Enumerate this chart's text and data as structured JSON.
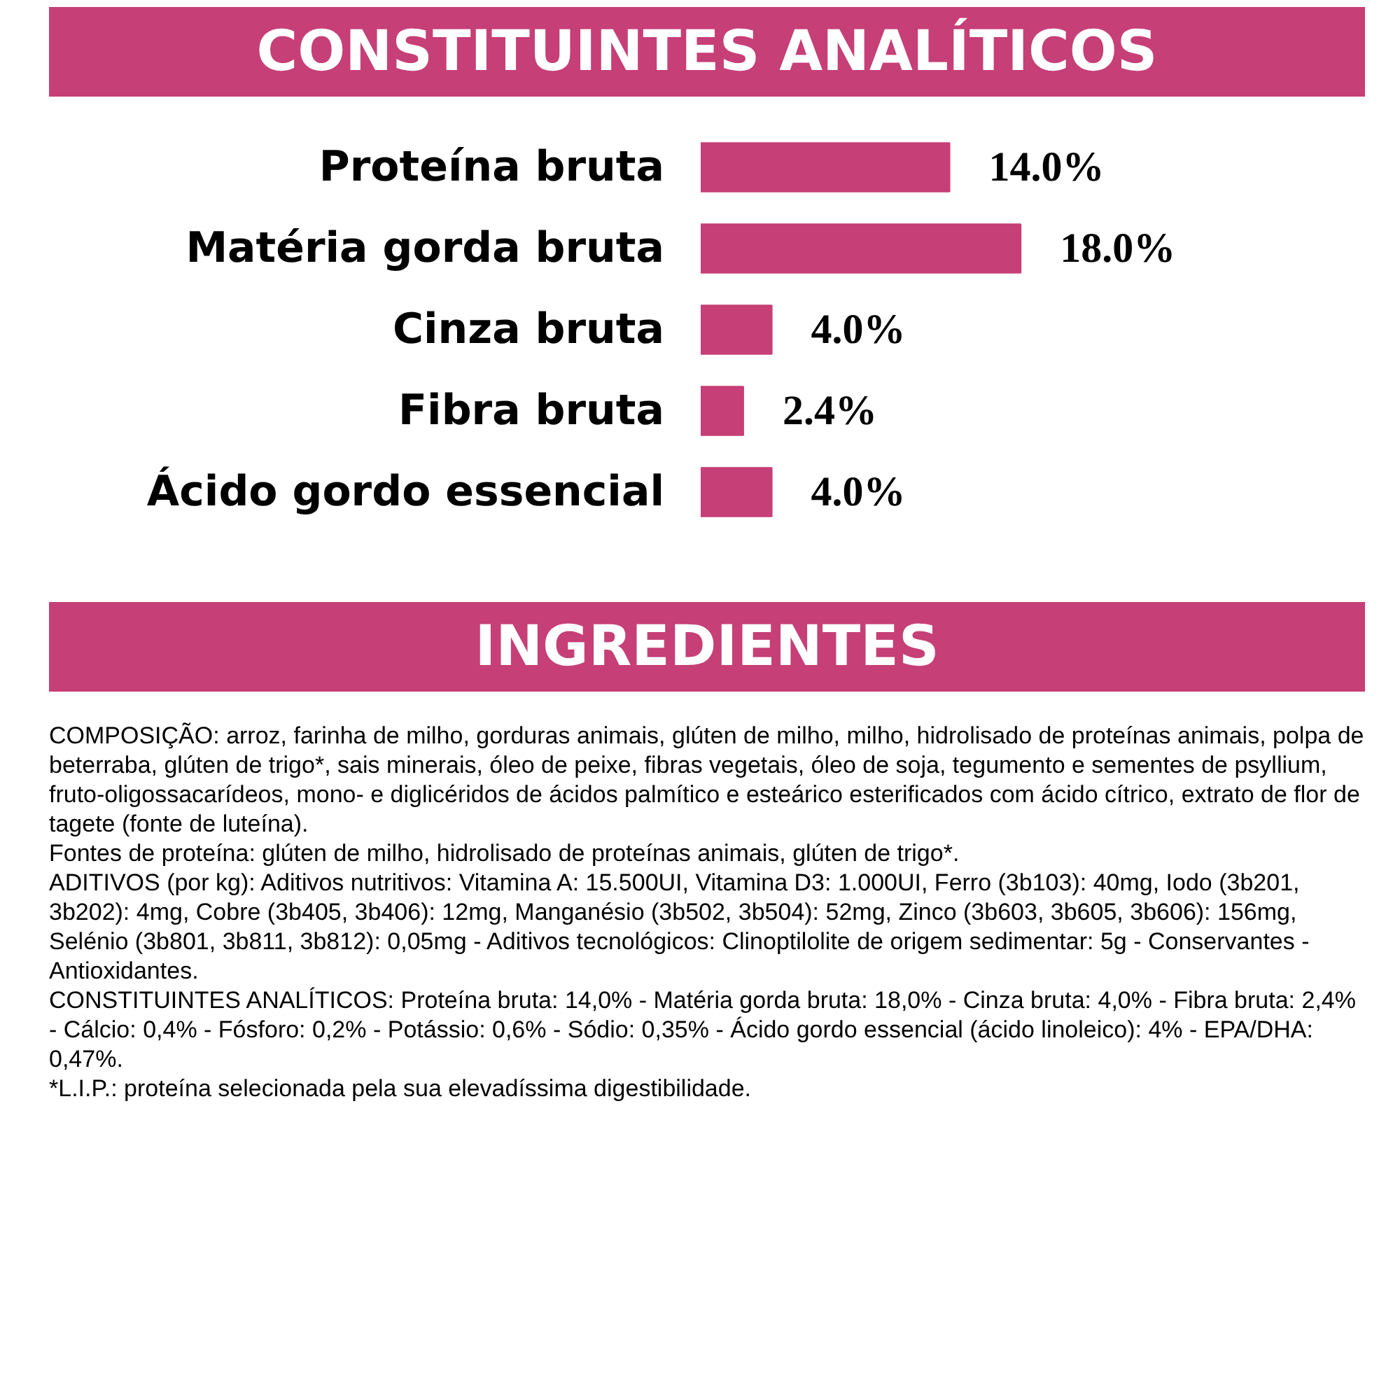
{
  "chart_data": {
    "type": "bar",
    "orientation": "horizontal",
    "title": "CONSTITUINTES ANALÍTICOS",
    "categories": [
      "Proteína bruta",
      "Matéria gorda bruta",
      "Cinza bruta",
      "Fibra bruta",
      "Ácido gordo essencial"
    ],
    "values": [
      14.0,
      18.0,
      4.0,
      2.4,
      4.0
    ],
    "value_labels": [
      "14.0%",
      "18.0%",
      "4.0%",
      "2.4%",
      "4.0%"
    ],
    "color": "#c63f76",
    "annotations": [
      "INGREDIENTES",
      "COMPOSIÇÃO: arroz, farinha de milho, gorduras animais, glúten de milho, milho, hidrolisado de proteínas animais, polpa de beterraba, glúten de trigo*, sais minerais, óleo de peixe, fibras vegetais, óleo de soja, tegumento e sementes de psyllium, fruto-oligossacarídeos, mono- e diglicéridos de ácidos palmítico e esteárico esterificados com ácido cítrico, extrato de flor de tagete (fonte de luteína).",
      "Fontes de proteína: glúten de milho, hidrolisado de proteínas animais, glúten de trigo*.",
      "ADITIVOS (por kg): Aditivos nutritivos: Vitamina A: 15.500UI, Vitamina D3: 1.000UI, Ferro (3b103): 40mg, Iodo (3b201, 3b202): 4mg, Cobre (3b405, 3b406): 12mg, Manganésio (3b502, 3b504): 52mg, Zinco (3b603, 3b605, 3b606): 156mg, Selénio (3b801, 3b811, 3b812): 0,05mg - Aditivos tecnológicos: Clinoptilolite de origem sedimentar: 5g - Conservantes - Antioxidantes.",
      "CONSTITUINTES ANALÍTICOS: Proteína bruta: 14,0% - Matéria gorda bruta: 18,0% - Cinza bruta: 4,0% - Fibra bruta: 2,4% - Cálcio: 0,4% - Fósforo: 0,2% - Potássio: 0,6% - Sódio: 0,35% - Ácido gordo essencial (ácido linoleico): 4% - EPA/DHA: 0,47%.",
      "*L.I.P.: proteína selecionada pela sua elevadíssima digestibilidade."
    ]
  }
}
